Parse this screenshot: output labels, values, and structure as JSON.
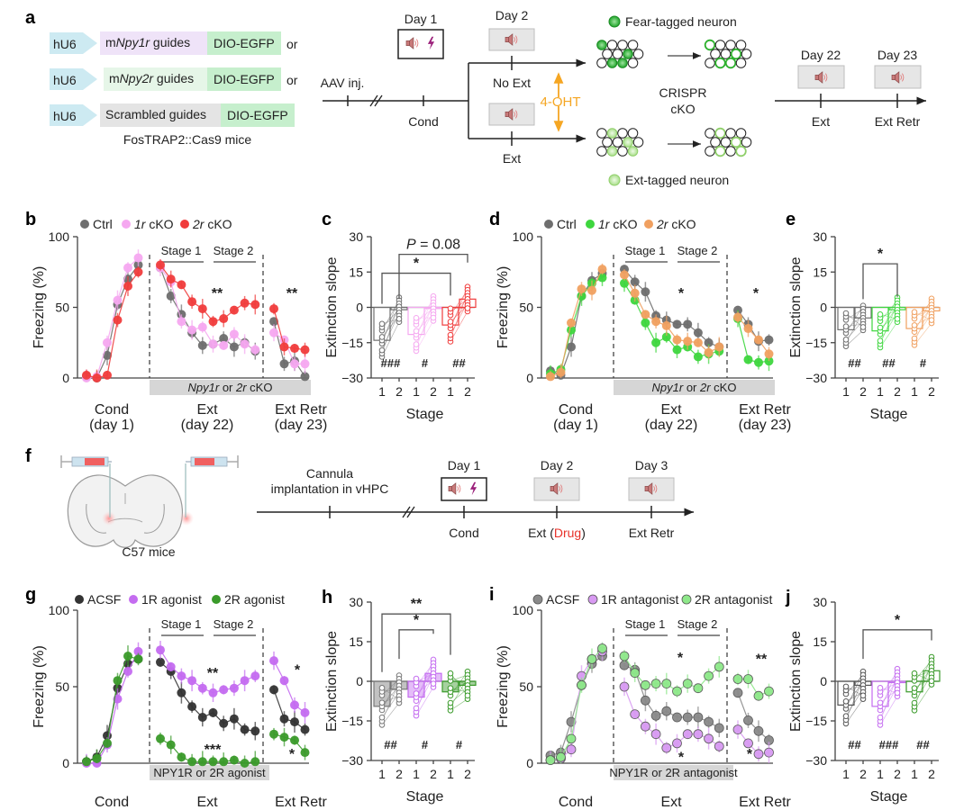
{
  "panel_labels": {
    "a": "a",
    "b": "b",
    "c": "c",
    "d": "d",
    "e": "e",
    "f": "f",
    "g": "g",
    "h": "h",
    "i": "i",
    "j": "j"
  },
  "colors": {
    "ctrl": "#6e6e6e",
    "pink": "#f5a8f0",
    "red": "#f03c3c",
    "green_bright": "#3ed63e",
    "orange": "#f0a060",
    "black": "#333333",
    "purple": "#c46cf0",
    "green_dark": "#3a9a2a",
    "acsf_gray": "#8a8a8a",
    "purple_light": "#d89af2",
    "green_light": "#8ee88a",
    "hu6": "#cdeaf2",
    "npy1r_box": "#efe3f8",
    "npy2r_box": "#e6f6e8",
    "scr_box": "#e4e4e4",
    "egfp": "#c6efcd",
    "ohtorange": "#f5a623",
    "drug_red": "#e8322a",
    "bolt": "#9b1f7a"
  },
  "panel_a": {
    "constructs": [
      {
        "promoter": "hU6",
        "guide_prefix": "m",
        "guide_gene": "Npy1r",
        "guide_suffix": " guides",
        "reporter": "DIO-EGFP",
        "or": "or"
      },
      {
        "promoter": "hU6",
        "guide_prefix": "m",
        "guide_gene": "Npy2r",
        "guide_suffix": " guides",
        "reporter": "DIO-EGFP",
        "or": "or"
      },
      {
        "promoter": "hU6",
        "guide_prefix": "",
        "guide_gene": "",
        "guide_suffix": "Scrambled guides",
        "reporter": "DIO-EGFP",
        "or": ""
      }
    ],
    "mice": "FosTRAP2::Cas9 mice",
    "timeline": {
      "aav": "AAV inj.",
      "day1": "Day 1",
      "cond": "Cond",
      "day2": "Day 2",
      "no_ext": "No Ext",
      "ext": "Ext",
      "oht": "4-OHT",
      "fear_tagged": "Fear-tagged neuron",
      "ext_tagged": "Ext-tagged neuron",
      "crispr": "CRISPR",
      "cko": "cKO",
      "day22": "Day 22",
      "day23": "Day 23",
      "ext2": "Ext",
      "ext_retr": "Ext Retr"
    }
  },
  "panel_f": {
    "mice": "C57 mice",
    "cannula_1": "Cannula",
    "cannula_2": "implantation in vHPC",
    "day1": "Day 1",
    "day2": "Day 2",
    "day3": "Day 3",
    "cond": "Cond",
    "ext_prefix": "Ext (",
    "drug": "Drug",
    "ext_suffix": ")",
    "ext_retr": "Ext Retr"
  },
  "chart_data": [
    {
      "id": "b",
      "type": "line",
      "ylabel": "Freezing (%)",
      "ylim": [
        0,
        100
      ],
      "yticks": [
        0,
        50,
        100
      ],
      "legend": [
        "Ctrl",
        "1r cKO",
        "2r cKO"
      ],
      "stage_labels": [
        "Stage 1",
        "Stage 2"
      ],
      "shade_label": "Npy1r or 2r cKO",
      "phase_labels": [
        [
          "Cond",
          "(day 1)"
        ],
        [
          "Ext",
          "(day 22)"
        ],
        [
          "Ext Retr",
          "(day 23)"
        ]
      ],
      "annotations": [
        "**",
        "**"
      ],
      "series": [
        {
          "name": "Ctrl",
          "cond": [
            1,
            0,
            16,
            52,
            70,
            80
          ],
          "ext": [
            78,
            58,
            45,
            32,
            23,
            24,
            28,
            22,
            25,
            19
          ],
          "retr": [
            40,
            10,
            12,
            1
          ]
        },
        {
          "name": "1r cKO",
          "cond": [
            0,
            1,
            25,
            55,
            78,
            85
          ],
          "ext": [
            78,
            68,
            40,
            34,
            36,
            24,
            23,
            31,
            24,
            20
          ],
          "retr": [
            32,
            27,
            10,
            10
          ]
        },
        {
          "name": "2r cKO",
          "cond": [
            2,
            0,
            2,
            41,
            65,
            75
          ],
          "ext": [
            80,
            70,
            66,
            54,
            49,
            40,
            42,
            48,
            53,
            52
          ],
          "retr": [
            49,
            22,
            21,
            20
          ]
        }
      ]
    },
    {
      "id": "c",
      "type": "bar",
      "ylabel": "Extinction slope",
      "xlabel": "Stage",
      "ylim": [
        -30,
        30
      ],
      "yticks": [
        -30,
        -15,
        0,
        15,
        30
      ],
      "categories": [
        "1",
        "2",
        "1",
        "2",
        "1",
        "2"
      ],
      "series": [
        {
          "name": "Ctrl",
          "means": [
            -14,
            -1
          ],
          "sig": "###"
        },
        {
          "name": "1r cKO",
          "means": [
            -11.5,
            -0.5
          ],
          "sig": "#"
        },
        {
          "name": "2r cKO",
          "means": [
            -7.5,
            3.5
          ],
          "sig": "##"
        }
      ],
      "brackets": [
        {
          "label": "*",
          "from": 0,
          "to": 4
        },
        {
          "label": "P = 0.08",
          "from": 1,
          "to": 5
        }
      ]
    },
    {
      "id": "d",
      "type": "line",
      "ylabel": "Freezing (%)",
      "ylim": [
        0,
        100
      ],
      "yticks": [
        0,
        50,
        100
      ],
      "legend": [
        "Ctrl",
        "1r cKO",
        "2r cKO"
      ],
      "stage_labels": [
        "Stage 1",
        "Stage 2"
      ],
      "shade_label": "Npy1r or 2r cKO",
      "phase_labels": [
        [
          "Cond",
          "(day 1)"
        ],
        [
          "Ext",
          "(day 22)"
        ],
        [
          "Ext Retr",
          "(day 23)"
        ]
      ],
      "annotations": [
        "*",
        "*"
      ],
      "series": [
        {
          "name": "Ctrl",
          "cond": [
            5,
            2,
            22,
            58,
            69,
            74
          ],
          "ext": [
            77,
            68,
            61,
            44,
            41,
            38,
            38,
            32,
            25,
            22
          ],
          "retr": [
            48,
            38,
            26,
            27
          ]
        },
        {
          "name": "1r cKO",
          "cond": [
            3,
            6,
            34,
            58,
            67,
            71
          ],
          "ext": [
            67,
            55,
            39,
            25,
            29,
            20,
            22,
            15,
            17,
            19
          ],
          "retr": [
            42,
            13,
            11,
            12
          ]
        },
        {
          "name": "2r cKO",
          "cond": [
            1,
            4,
            39,
            63,
            62,
            77
          ],
          "ext": [
            73,
            60,
            45,
            40,
            37,
            27,
            26,
            25,
            18,
            22
          ],
          "retr": [
            43,
            35,
            27,
            17
          ]
        }
      ]
    },
    {
      "id": "e",
      "type": "bar",
      "ylabel": "Extinction slope",
      "xlabel": "Stage",
      "ylim": [
        -30,
        30
      ],
      "yticks": [
        -30,
        -15,
        0,
        15,
        30
      ],
      "categories": [
        "1",
        "2",
        "1",
        "2",
        "1",
        "2"
      ],
      "series": [
        {
          "name": "Ctrl",
          "means": [
            -9.5,
            -4.5
          ],
          "sig": "##"
        },
        {
          "name": "1r cKO",
          "means": [
            -10,
            -1
          ],
          "sig": "##"
        },
        {
          "name": "2r cKO",
          "means": [
            -9,
            -1.5
          ],
          "sig": "#"
        }
      ],
      "brackets": [
        {
          "label": "*",
          "from": 1,
          "to": 3
        }
      ]
    },
    {
      "id": "g",
      "type": "line",
      "ylabel": "Freezing (%)",
      "ylim": [
        0,
        100
      ],
      "yticks": [
        0,
        50,
        100
      ],
      "legend": [
        "ACSF",
        "1R agonist",
        "2R agonist"
      ],
      "stage_labels": [
        "Stage 1",
        "Stage 2"
      ],
      "shade_label": "NPY1R or 2R agonist",
      "phase_labels": [
        [
          "Cond"
        ],
        [
          "Ext"
        ],
        [
          "Ext Retr"
        ]
      ],
      "series": [
        {
          "name": "ACSF",
          "cond": [
            1,
            4,
            18,
            49,
            65,
            68
          ],
          "ext": [
            66,
            60,
            46,
            37,
            30,
            33,
            26,
            29,
            22,
            21
          ],
          "retr": [
            48,
            29,
            27,
            22
          ]
        },
        {
          "name": "1R agonist",
          "cond": [
            0,
            0,
            12,
            42,
            60,
            73
          ],
          "ext": [
            74,
            63,
            57,
            54,
            49,
            46,
            48,
            49,
            54,
            57
          ],
          "retr": [
            67,
            54,
            38,
            33
          ]
        },
        {
          "name": "2R agonist",
          "cond": [
            1,
            3,
            13,
            54,
            70,
            68
          ],
          "ext": [
            16,
            12,
            4,
            1,
            1,
            1,
            1,
            2,
            0,
            1
          ],
          "retr": [
            19,
            17,
            15,
            7
          ]
        }
      ],
      "annotations": [
        {
          "text": "**",
          "color": "purple"
        },
        {
          "text": "***",
          "color": "green"
        },
        {
          "text": "*",
          "color": "purple"
        },
        {
          "text": "*",
          "color": "green"
        }
      ]
    },
    {
      "id": "h",
      "type": "bar",
      "ylabel": "Extinction slope",
      "xlabel": "Stage",
      "ylim": [
        -30,
        30
      ],
      "yticks": [
        -30,
        -15,
        0,
        15,
        30
      ],
      "categories": [
        "1",
        "2",
        "1",
        "2",
        "1",
        "2"
      ],
      "series": [
        {
          "name": "ACSF",
          "means": [
            -9.5,
            -3
          ],
          "sig": "##"
        },
        {
          "name": "1R agonist",
          "means": [
            -6,
            3
          ],
          "sig": "#"
        },
        {
          "name": "2R agonist",
          "means": [
            -4,
            -1.5
          ],
          "sig": "#"
        }
      ],
      "brackets": [
        {
          "label": "**",
          "from": 0,
          "to": 4,
          "color": "green"
        },
        {
          "label": "*",
          "from": 1,
          "to": 3,
          "color": "purple"
        }
      ]
    },
    {
      "id": "i",
      "type": "line",
      "ylabel": "Freezing (%)",
      "ylim": [
        0,
        100
      ],
      "yticks": [
        0,
        50,
        100
      ],
      "legend": [
        "ACSF",
        "1R antagonist",
        "2R antagonist"
      ],
      "stage_labels": [
        "Stage 1",
        "Stage 2"
      ],
      "shade_label": "NPY1R or 2R antagonist",
      "phase_labels": [
        [
          "Cond"
        ],
        [
          "Ext"
        ],
        [
          "Ext Retr"
        ]
      ],
      "series": [
        {
          "name": "ACSF",
          "cond": [
            5,
            7,
            27,
            51,
            65,
            70
          ],
          "ext": [
            64,
            61,
            41,
            31,
            34,
            30,
            30,
            30,
            27,
            23
          ],
          "retr": [
            46,
            28,
            21,
            15
          ]
        },
        {
          "name": "1R antagonist",
          "cond": [
            2,
            3,
            9,
            57,
            68,
            73
          ],
          "ext": [
            50,
            32,
            24,
            19,
            10,
            13,
            19,
            19,
            16,
            11
          ],
          "retr": [
            22,
            13,
            6,
            7
          ]
        },
        {
          "name": "2R antagonist",
          "cond": [
            2,
            4,
            16,
            51,
            68,
            75
          ],
          "ext": [
            70,
            59,
            51,
            52,
            52,
            47,
            52,
            49,
            57,
            63
          ],
          "retr": [
            55,
            55,
            44,
            47
          ]
        }
      ],
      "annotations": [
        {
          "text": "*",
          "color": "green"
        },
        {
          "text": "*",
          "color": "purple"
        },
        {
          "text": "**",
          "color": "green"
        },
        {
          "text": "*",
          "color": "purple"
        }
      ]
    },
    {
      "id": "j",
      "type": "bar",
      "ylabel": "Extinction slope",
      "xlabel": "Stage",
      "ylim": [
        -30,
        30
      ],
      "yticks": [
        -30,
        -15,
        0,
        15,
        30
      ],
      "categories": [
        "1",
        "2",
        "1",
        "2",
        "1",
        "2"
      ],
      "series": [
        {
          "name": "ACSF",
          "means": [
            -9,
            -1.5
          ],
          "sig": "##"
        },
        {
          "name": "1R antagonist",
          "means": [
            -9.5,
            -0.5
          ],
          "sig": "###"
        },
        {
          "name": "2R antagonist",
          "means": [
            -4,
            4
          ],
          "sig": "##"
        }
      ],
      "brackets": [
        {
          "label": "*",
          "from": 1,
          "to": 5,
          "color": "green"
        }
      ]
    }
  ]
}
